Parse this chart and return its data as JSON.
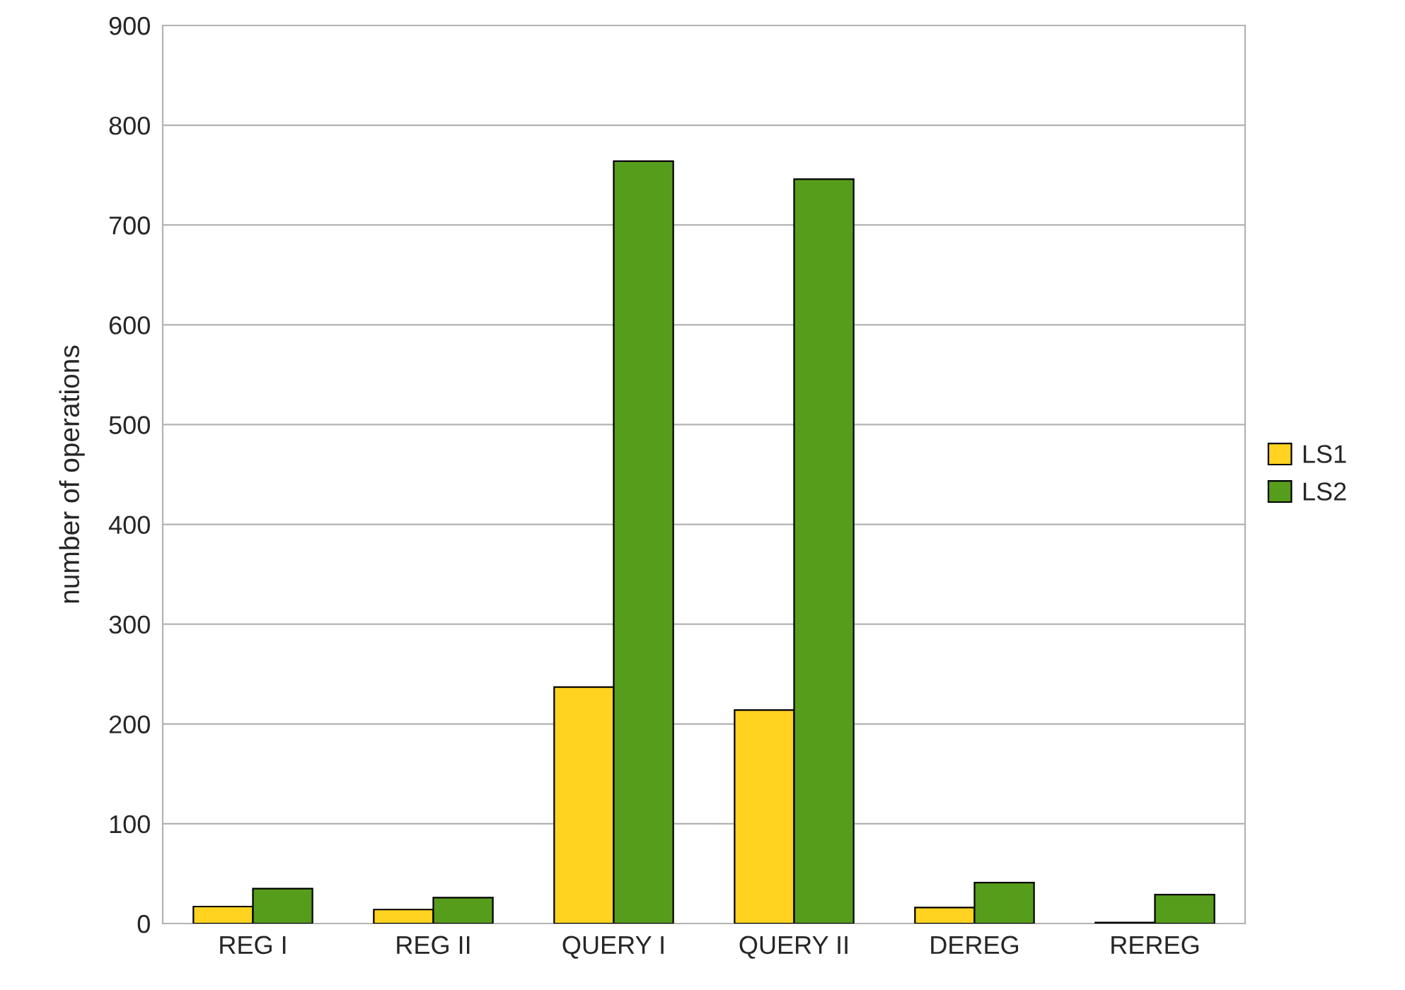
{
  "chart_data": {
    "type": "bar",
    "ylabel": "number of operations",
    "categories": [
      "REG I",
      "REG II",
      "QUERY I",
      "QUERY II",
      "DEREG",
      "REREG"
    ],
    "series": [
      {
        "name": "LS1",
        "color": "#ffd320",
        "values": [
          17,
          14,
          237,
          214,
          16,
          1
        ]
      },
      {
        "name": "LS2",
        "color": "#579d1c",
        "values": [
          35,
          26,
          764,
          746,
          41,
          29
        ]
      }
    ],
    "ylim": [
      0,
      900
    ],
    "yticks": [
      0,
      100,
      200,
      300,
      400,
      500,
      600,
      700,
      800,
      900
    ],
    "grid": "y",
    "legend": "right"
  }
}
